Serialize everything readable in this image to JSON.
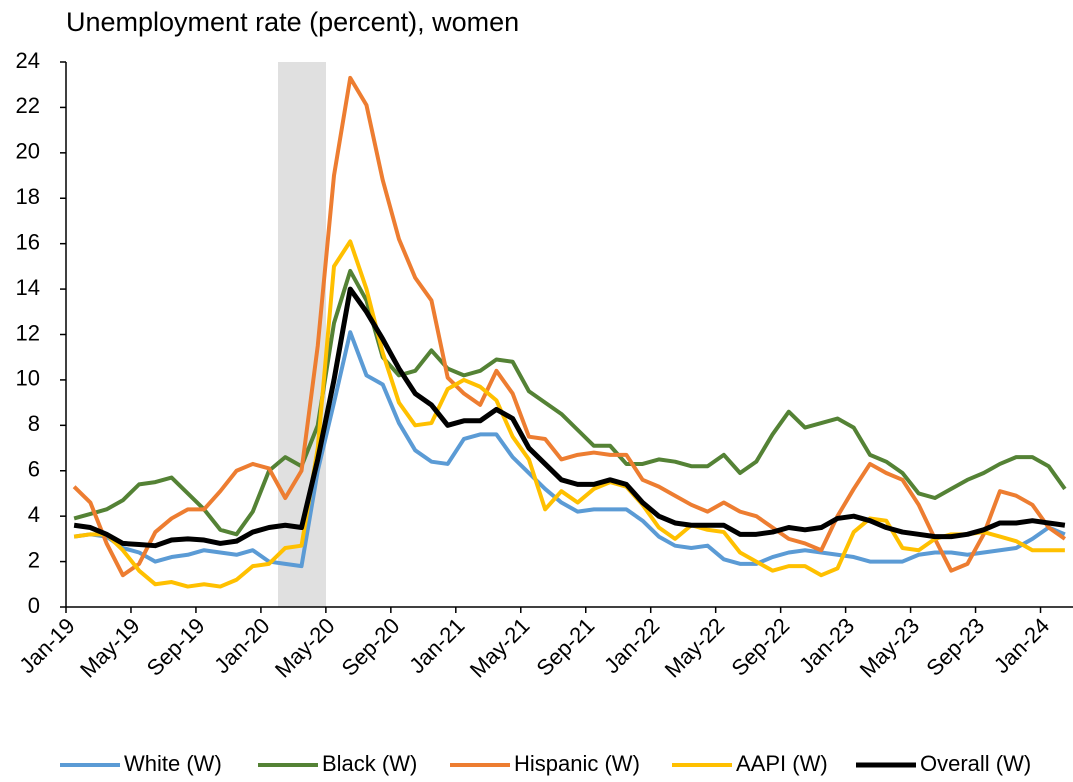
{
  "chart_data": {
    "type": "line",
    "title": "Unemployment rate (percent), women",
    "categories": [
      "Jan-19",
      null,
      null,
      null,
      "May-19",
      null,
      null,
      null,
      "Sep-19",
      null,
      null,
      null,
      "Jan-20",
      null,
      null,
      null,
      "May-20",
      null,
      null,
      null,
      "Sep-20",
      null,
      null,
      null,
      "Jan-21",
      null,
      null,
      null,
      "May-21",
      null,
      null,
      null,
      "Sep-21",
      null,
      null,
      null,
      "Jan-22",
      null,
      null,
      null,
      "May-22",
      null,
      null,
      null,
      "Sep-22",
      null,
      null,
      null,
      "Jan-23",
      null,
      null,
      null,
      "May-23",
      null,
      null,
      null,
      "Sep-23",
      null,
      null,
      null,
      "Jan-24",
      null
    ],
    "series": [
      {
        "name": "White (W)",
        "color": "#5b9bd5",
        "values": [
          3.1,
          3.2,
          3.1,
          2.6,
          2.4,
          2.0,
          2.2,
          2.3,
          2.5,
          2.4,
          2.3,
          2.5,
          2.0,
          1.9,
          1.8,
          6.0,
          9.0,
          12.1,
          10.2,
          9.8,
          8.1,
          6.9,
          6.4,
          6.3,
          7.4,
          7.6,
          7.6,
          6.6,
          5.9,
          5.2,
          4.6,
          4.2,
          4.3,
          4.3,
          4.3,
          3.8,
          3.1,
          2.7,
          2.6,
          2.7,
          2.1,
          1.9,
          1.9,
          2.2,
          2.4,
          2.5,
          2.4,
          2.3,
          2.2,
          2.0,
          2.0,
          2.0,
          2.3,
          2.4,
          2.4,
          2.3,
          2.4,
          2.5,
          2.6,
          3.0,
          3.5,
          3.2
        ]
      },
      {
        "name": "Black (W)",
        "color": "#548235",
        "values": [
          3.9,
          4.1,
          4.3,
          4.7,
          5.4,
          5.5,
          5.7,
          5.0,
          4.3,
          3.4,
          3.2,
          4.2,
          6.0,
          6.6,
          6.2,
          8.0,
          12.5,
          14.8,
          13.5,
          11.0,
          10.2,
          10.4,
          11.3,
          10.5,
          10.2,
          10.4,
          10.9,
          10.8,
          9.5,
          9.0,
          8.5,
          7.8,
          7.1,
          7.1,
          6.3,
          6.3,
          6.5,
          6.4,
          6.2,
          6.2,
          6.7,
          5.9,
          6.4,
          7.6,
          8.6,
          7.9,
          8.1,
          8.3,
          7.9,
          6.7,
          6.4,
          5.9,
          5.0,
          4.8,
          5.2,
          5.6,
          5.9,
          6.3,
          6.6,
          6.6,
          6.2,
          5.2
        ]
      },
      {
        "name": "Hispanic (W)",
        "color": "#ed7d31",
        "values": [
          5.3,
          4.6,
          2.8,
          1.4,
          1.9,
          3.3,
          3.9,
          4.3,
          4.3,
          5.1,
          6.0,
          6.3,
          6.1,
          4.8,
          6.0,
          11.5,
          19.0,
          23.3,
          22.1,
          18.8,
          16.2,
          14.5,
          13.5,
          10.1,
          9.4,
          8.9,
          10.4,
          9.4,
          7.5,
          7.4,
          6.5,
          6.7,
          6.8,
          6.7,
          6.7,
          5.6,
          5.3,
          4.9,
          4.5,
          4.2,
          4.6,
          4.2,
          4.0,
          3.5,
          3.0,
          2.8,
          2.5,
          4.0,
          5.2,
          6.3,
          5.9,
          5.6,
          4.5,
          3.0,
          1.6,
          1.9,
          3.2,
          5.1,
          4.9,
          4.5,
          3.5,
          3.0
        ]
      },
      {
        "name": "AAPI (W)",
        "color": "#ffc000",
        "values": [
          3.1,
          3.2,
          3.2,
          2.5,
          1.6,
          1.0,
          1.1,
          0.9,
          1.0,
          0.9,
          1.2,
          1.8,
          1.9,
          2.6,
          2.7,
          7.0,
          15.0,
          16.1,
          14.0,
          11.2,
          9.0,
          8.0,
          8.1,
          9.6,
          10.0,
          9.7,
          9.1,
          7.5,
          6.5,
          4.3,
          5.1,
          4.6,
          5.2,
          5.5,
          5.3,
          4.5,
          3.5,
          3.0,
          3.6,
          3.4,
          3.3,
          2.4,
          2.0,
          1.6,
          1.8,
          1.8,
          1.4,
          1.7,
          3.3,
          3.9,
          3.8,
          2.6,
          2.5,
          3.0,
          3.2,
          3.2,
          3.3,
          3.1,
          2.9,
          2.5,
          2.5,
          2.5
        ]
      },
      {
        "name": "Overall (W)",
        "color": "#000000",
        "values": [
          3.6,
          3.5,
          3.2,
          2.8,
          2.75,
          2.7,
          2.95,
          3.0,
          2.95,
          2.8,
          2.9,
          3.3,
          3.5,
          3.6,
          3.5,
          6.5,
          10.0,
          14.0,
          13.0,
          11.8,
          10.5,
          9.4,
          8.9,
          8.0,
          8.2,
          8.2,
          8.7,
          8.3,
          7.0,
          6.3,
          5.6,
          5.4,
          5.4,
          5.6,
          5.4,
          4.6,
          4.0,
          3.7,
          3.6,
          3.6,
          3.6,
          3.2,
          3.2,
          3.3,
          3.5,
          3.4,
          3.5,
          3.9,
          4.0,
          3.8,
          3.5,
          3.3,
          3.2,
          3.1,
          3.1,
          3.2,
          3.4,
          3.7,
          3.7,
          3.8,
          3.7,
          3.6
        ]
      }
    ],
    "ylim": [
      0,
      24
    ],
    "yticks": [
      0,
      2,
      4,
      6,
      8,
      10,
      12,
      14,
      16,
      18,
      20,
      22,
      24
    ],
    "grid": false,
    "legend": "bottom"
  }
}
